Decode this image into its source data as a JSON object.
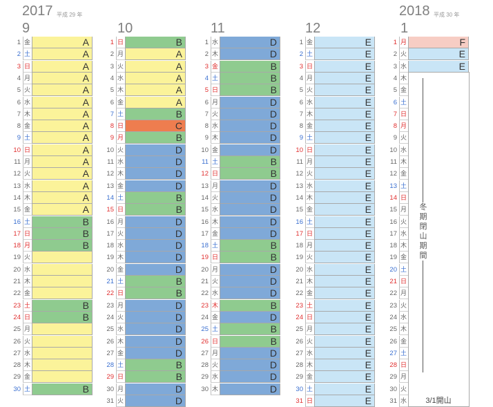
{
  "years": [
    {
      "year": "2017",
      "era": "平成 29 年"
    },
    {
      "year": "2018",
      "era": "平成 30 年"
    }
  ],
  "months": [
    {
      "name": "9",
      "start": 5,
      "days": 30,
      "holidays": [
        18,
        23
      ],
      "segments": [
        [
          "A",
          15
        ],
        [
          "B",
          3
        ],
        [
          "",
          4
        ],
        [
          "B",
          2
        ],
        [
          "",
          5
        ],
        [
          "B",
          1
        ]
      ]
    },
    {
      "name": "10",
      "start": 0,
      "days": 31,
      "holidays": [
        1,
        8,
        9
      ],
      "segments": [
        [
          "B",
          1
        ],
        [
          "A",
          5
        ],
        [
          "B",
          1
        ],
        [
          "C",
          1
        ],
        [
          "B",
          1
        ],
        [
          "D",
          4
        ],
        [
          "B",
          2
        ],
        [
          "D",
          5
        ],
        [
          "B",
          2
        ],
        [
          "D",
          5
        ],
        [
          "B",
          2
        ],
        [
          "D",
          2
        ]
      ]
    },
    {
      "name": "11",
      "start": 3,
      "days": 30,
      "holidays": [
        3,
        23
      ],
      "segments": [
        [
          "D",
          2
        ],
        [
          "B",
          3
        ],
        [
          "D",
          5
        ],
        [
          "B",
          2
        ],
        [
          "D",
          5
        ],
        [
          "B",
          2
        ],
        [
          "D",
          3
        ],
        [
          "B",
          1
        ],
        [
          "D",
          1
        ],
        [
          "B",
          2
        ],
        [
          "D",
          4
        ]
      ]
    },
    {
      "name": "12",
      "start": 5,
      "days": 31,
      "holidays": [
        23,
        31
      ],
      "segments": [
        [
          "E",
          31
        ]
      ]
    },
    {
      "name": "1",
      "start": 1,
      "days": 31,
      "holidays": [
        1,
        8
      ],
      "segments": [
        [
          "F",
          1
        ],
        [
          "E",
          2
        ]
      ]
    }
  ],
  "weekdays": [
    "日",
    "月",
    "火",
    "水",
    "木",
    "金",
    "土"
  ],
  "winter_note": "冬期閉山期間",
  "reopen_note": "3/1開山",
  "colors": {
    "A": "#fbf39a",
    "B": "#8fcb8f",
    "C": "#ee7d4f",
    "D": "#7fa9d8",
    "E": "#c9e5f6",
    "F": "#f7cdc4",
    "sat": "#3a6fd0",
    "sun": "#e03030"
  }
}
